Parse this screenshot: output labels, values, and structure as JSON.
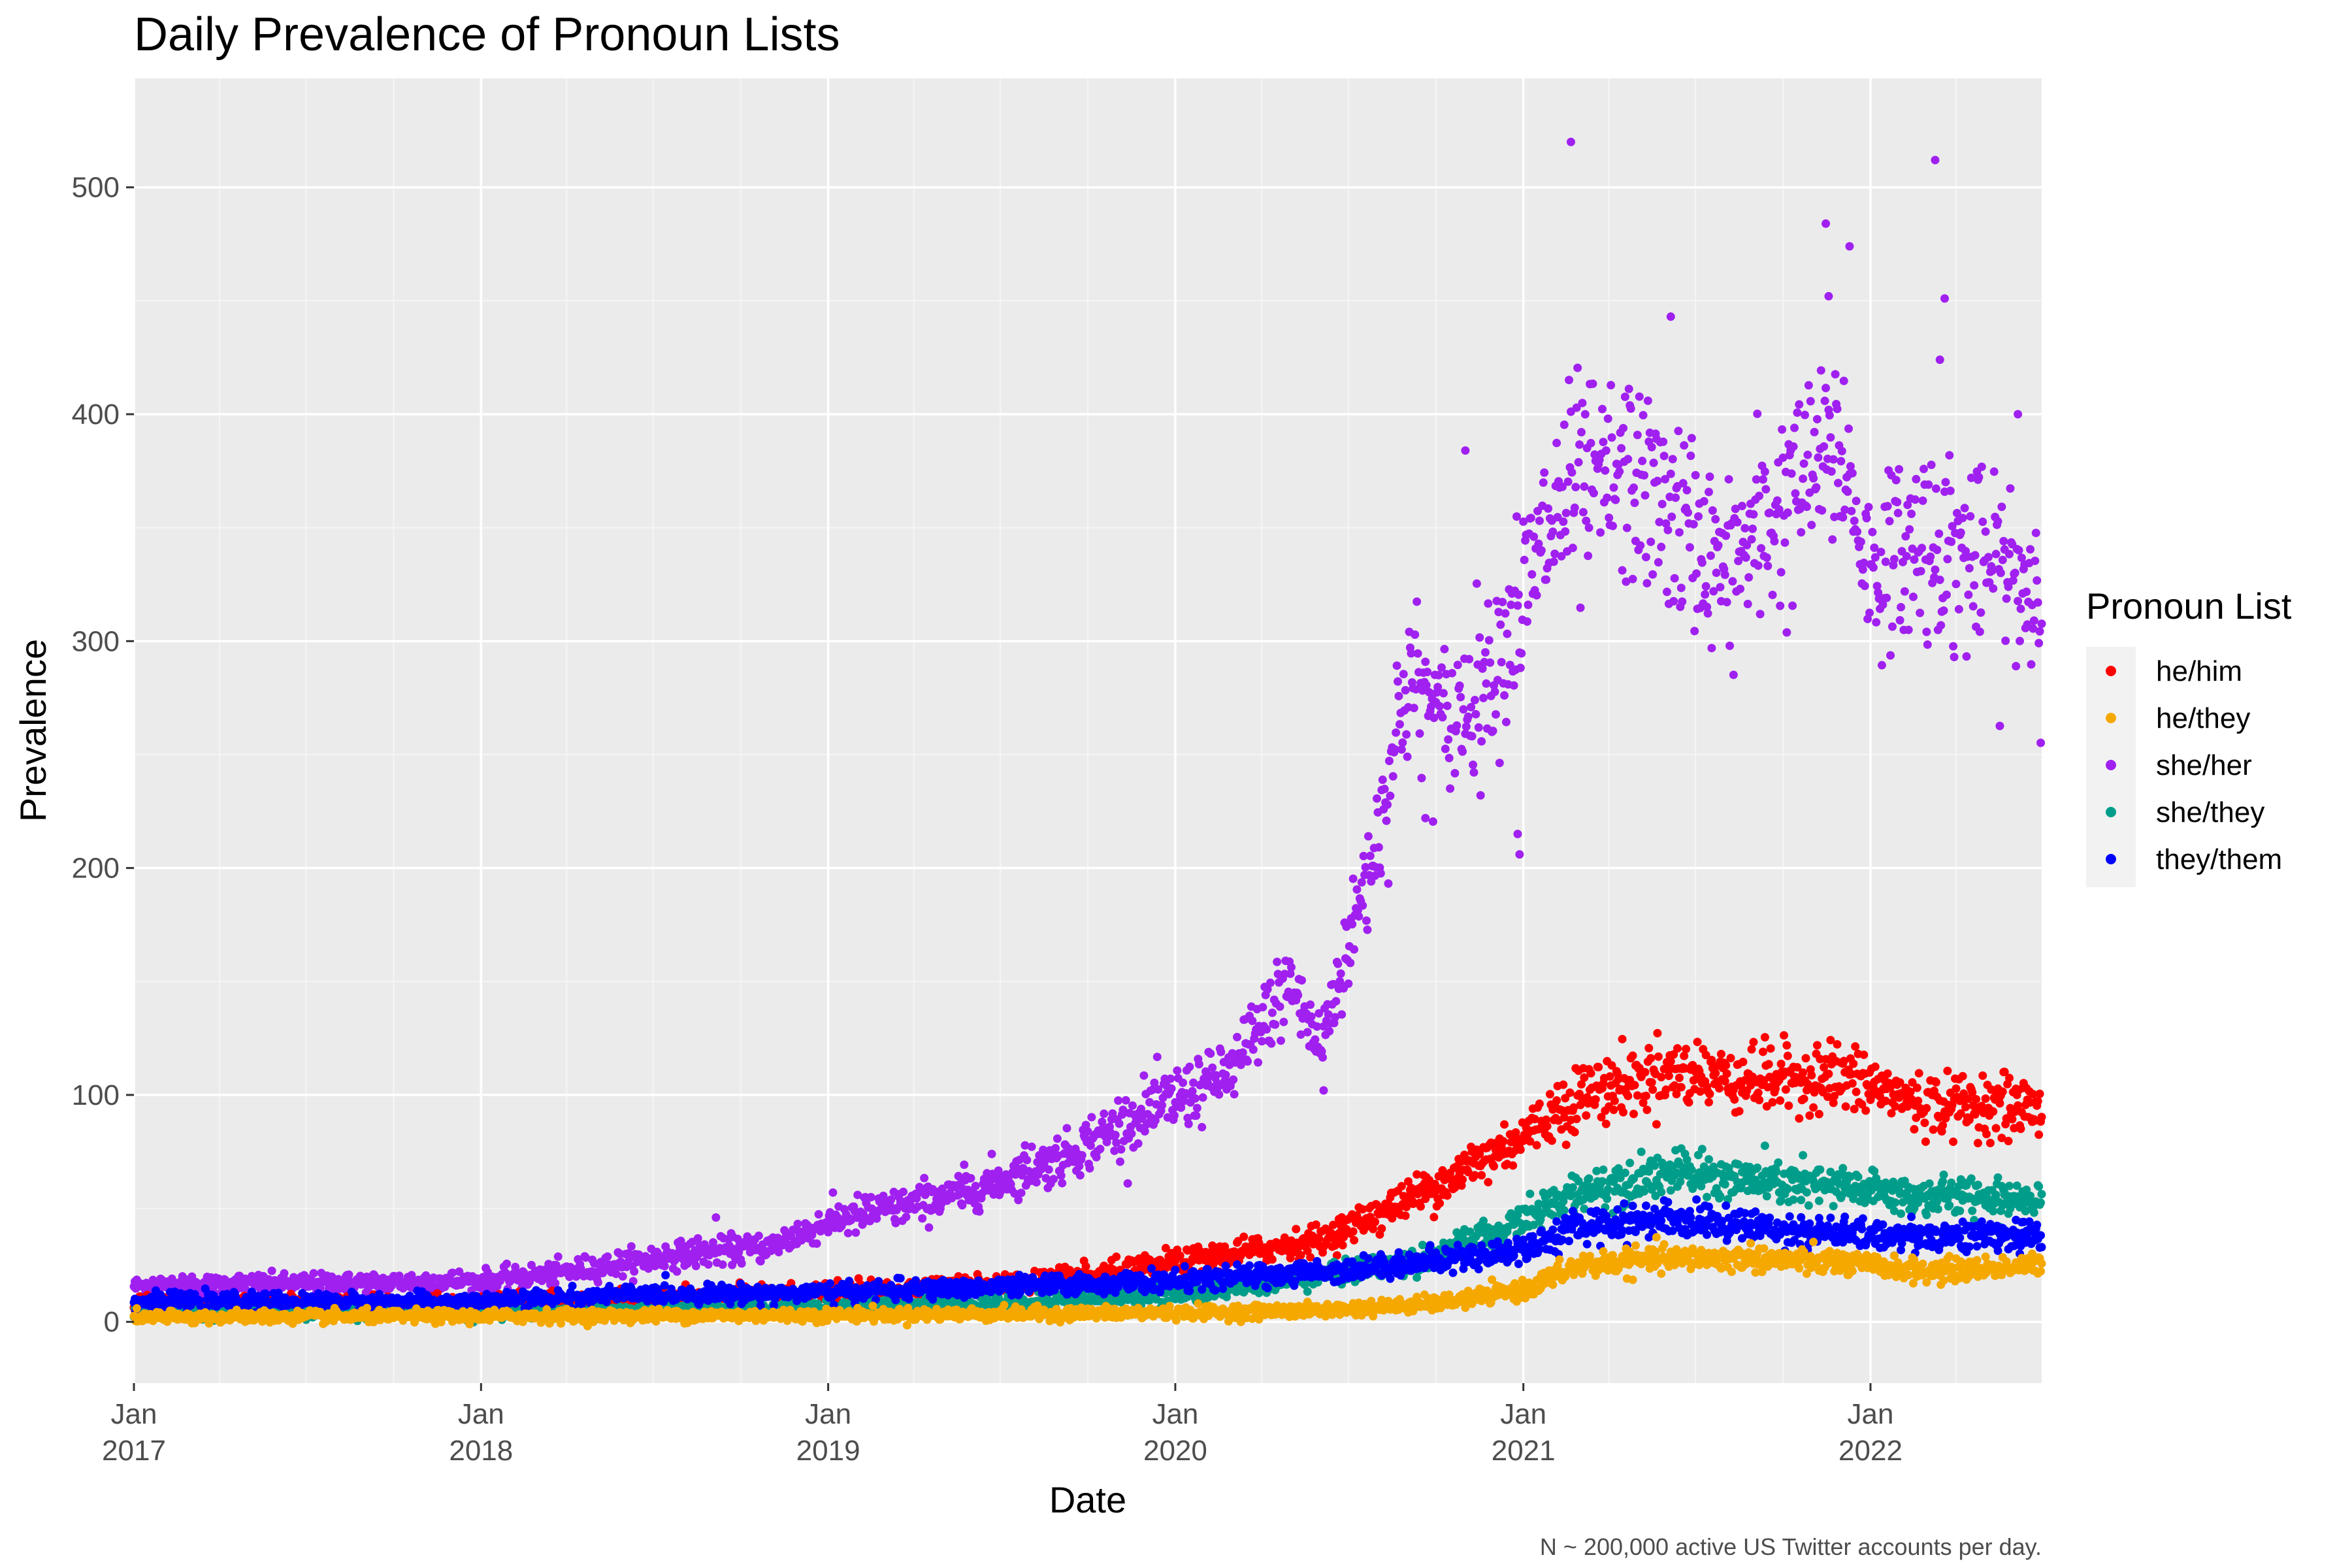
{
  "chart_data": {
    "type": "scatter",
    "title": "Daily Prevalence of Pronoun Lists",
    "xlabel": "Date",
    "ylabel": "Prevalence",
    "caption": "N ~ 200,000 active US Twitter accounts per day.",
    "legend_title": "Pronoun List",
    "legend_position": "right",
    "grid": true,
    "xlim": [
      "2017-01-01",
      "2022-06-30"
    ],
    "ylim": [
      -27,
      548
    ],
    "x_ticks": [
      {
        "date": "2017-01-01",
        "line1": "Jan",
        "line2": "2017"
      },
      {
        "date": "2018-01-01",
        "line1": "Jan",
        "line2": "2018"
      },
      {
        "date": "2019-01-01",
        "line1": "Jan",
        "line2": "2019"
      },
      {
        "date": "2020-01-01",
        "line1": "Jan",
        "line2": "2020"
      },
      {
        "date": "2021-01-01",
        "line1": "Jan",
        "line2": "2021"
      },
      {
        "date": "2022-01-01",
        "line1": "Jan",
        "line2": "2022"
      }
    ],
    "y_ticks": [
      0,
      100,
      200,
      300,
      400,
      500
    ],
    "series": [
      {
        "name": "he/him",
        "color": "#ff0000",
        "trend": [
          {
            "date": "2017-01-01",
            "y": 8
          },
          {
            "date": "2018-01-01",
            "y": 8
          },
          {
            "date": "2018-06-01",
            "y": 10
          },
          {
            "date": "2019-01-01",
            "y": 13
          },
          {
            "date": "2019-06-01",
            "y": 16
          },
          {
            "date": "2019-10-01",
            "y": 20
          },
          {
            "date": "2020-01-01",
            "y": 26
          },
          {
            "date": "2020-06-01",
            "y": 36
          },
          {
            "date": "2020-08-01",
            "y": 48
          },
          {
            "date": "2020-10-01",
            "y": 60
          },
          {
            "date": "2021-01-01",
            "y": 82
          },
          {
            "date": "2021-03-01",
            "y": 100
          },
          {
            "date": "2021-06-01",
            "y": 110
          },
          {
            "date": "2021-09-01",
            "y": 107
          },
          {
            "date": "2021-12-01",
            "y": 108
          },
          {
            "date": "2022-03-01",
            "y": 96
          },
          {
            "date": "2022-06-30",
            "y": 95
          }
        ]
      },
      {
        "name": "he/they",
        "color": "#f5a800",
        "trend": [
          {
            "date": "2017-01-01",
            "y": 2
          },
          {
            "date": "2019-01-01",
            "y": 3
          },
          {
            "date": "2020-01-01",
            "y": 4
          },
          {
            "date": "2020-06-01",
            "y": 5
          },
          {
            "date": "2020-10-01",
            "y": 8
          },
          {
            "date": "2021-01-01",
            "y": 14
          },
          {
            "date": "2021-03-01",
            "y": 25
          },
          {
            "date": "2021-06-01",
            "y": 28
          },
          {
            "date": "2021-09-01",
            "y": 28
          },
          {
            "date": "2022-01-01",
            "y": 25
          },
          {
            "date": "2022-03-01",
            "y": 22
          },
          {
            "date": "2022-06-30",
            "y": 25
          }
        ]
      },
      {
        "name": "she/her",
        "color": "#a020f0",
        "trend": [
          {
            "date": "2017-01-01",
            "y": 16
          },
          {
            "date": "2018-01-01",
            "y": 18
          },
          {
            "date": "2018-04-01",
            "y": 22
          },
          {
            "date": "2018-08-01",
            "y": 30
          },
          {
            "date": "2018-11-01",
            "y": 33
          },
          {
            "date": "2019-01-01",
            "y": 44
          },
          {
            "date": "2019-06-01",
            "y": 58
          },
          {
            "date": "2019-09-01",
            "y": 72
          },
          {
            "date": "2019-12-01",
            "y": 92
          },
          {
            "date": "2020-03-01",
            "y": 110
          },
          {
            "date": "2020-05-01",
            "y": 150
          },
          {
            "date": "2020-06-01",
            "y": 120
          },
          {
            "date": "2020-08-01",
            "y": 215
          },
          {
            "date": "2020-09-01",
            "y": 285
          },
          {
            "date": "2020-10-15",
            "y": 262
          },
          {
            "date": "2020-12-01",
            "y": 290
          },
          {
            "date": "2021-02-15",
            "y": 365
          },
          {
            "date": "2021-05-01",
            "y": 372
          },
          {
            "date": "2021-08-01",
            "y": 330
          },
          {
            "date": "2021-11-01",
            "y": 375
          },
          {
            "date": "2021-12-01",
            "y": 385
          },
          {
            "date": "2022-01-01",
            "y": 330
          },
          {
            "date": "2022-03-01",
            "y": 345
          },
          {
            "date": "2022-06-30",
            "y": 322
          }
        ],
        "outliers": [
          {
            "date": "2021-02-20",
            "y": 520
          },
          {
            "date": "2022-03-10",
            "y": 512
          },
          {
            "date": "2021-11-15",
            "y": 484
          },
          {
            "date": "2021-12-10",
            "y": 474
          },
          {
            "date": "2022-03-20",
            "y": 451
          },
          {
            "date": "2021-11-18",
            "y": 452
          },
          {
            "date": "2021-06-05",
            "y": 443
          },
          {
            "date": "2022-03-15",
            "y": 424
          },
          {
            "date": "2020-11-01",
            "y": 384
          },
          {
            "date": "2020-12-26",
            "y": 215
          },
          {
            "date": "2020-12-28",
            "y": 206
          },
          {
            "date": "2022-06-05",
            "y": 400
          },
          {
            "date": "2020-09-20",
            "y": 222
          },
          {
            "date": "2020-06-05",
            "y": 102
          },
          {
            "date": "2018-09-05",
            "y": 46
          }
        ]
      },
      {
        "name": "she/they",
        "color": "#009e8a",
        "trend": [
          {
            "date": "2017-01-01",
            "y": 4
          },
          {
            "date": "2018-01-01",
            "y": 4
          },
          {
            "date": "2019-01-01",
            "y": 6
          },
          {
            "date": "2019-06-01",
            "y": 8
          },
          {
            "date": "2020-01-01",
            "y": 12
          },
          {
            "date": "2020-06-01",
            "y": 20
          },
          {
            "date": "2020-09-01",
            "y": 26
          },
          {
            "date": "2020-12-01",
            "y": 38
          },
          {
            "date": "2021-03-01",
            "y": 58
          },
          {
            "date": "2021-06-01",
            "y": 66
          },
          {
            "date": "2021-09-01",
            "y": 62
          },
          {
            "date": "2022-01-01",
            "y": 58
          },
          {
            "date": "2022-03-01",
            "y": 55
          },
          {
            "date": "2022-06-30",
            "y": 55
          }
        ]
      },
      {
        "name": "they/them",
        "color": "#0000ff",
        "trend": [
          {
            "date": "2017-01-01",
            "y": 9
          },
          {
            "date": "2018-01-01",
            "y": 9
          },
          {
            "date": "2018-06-01",
            "y": 12
          },
          {
            "date": "2019-01-01",
            "y": 13
          },
          {
            "date": "2019-06-01",
            "y": 15
          },
          {
            "date": "2020-01-01",
            "y": 18
          },
          {
            "date": "2020-06-01",
            "y": 22
          },
          {
            "date": "2020-10-01",
            "y": 27
          },
          {
            "date": "2021-01-01",
            "y": 32
          },
          {
            "date": "2021-03-01",
            "y": 42
          },
          {
            "date": "2021-06-01",
            "y": 46
          },
          {
            "date": "2021-09-01",
            "y": 42
          },
          {
            "date": "2022-01-01",
            "y": 38
          },
          {
            "date": "2022-06-30",
            "y": 38
          }
        ]
      }
    ]
  }
}
